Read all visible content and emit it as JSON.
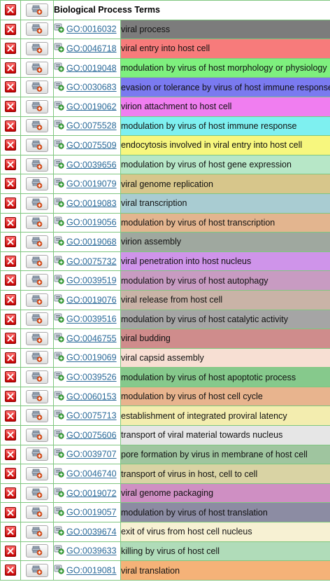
{
  "header": {
    "title": "Biological Process Terms"
  },
  "rows": [
    {
      "id": "GO:0016032",
      "term": "viral process",
      "color": "#7c7c7c"
    },
    {
      "id": "GO:0046718",
      "term": "viral entry into host cell",
      "color": "#f77b7b"
    },
    {
      "id": "GO:0019048",
      "term": "modulation by virus of host morphology or physiology",
      "color": "#7ef07e"
    },
    {
      "id": "GO:0030683",
      "term": "evasion or tolerance by virus of host immune response",
      "color": "#7a7af0"
    },
    {
      "id": "GO:0019062",
      "term": "virion attachment to host cell",
      "color": "#f07ef0"
    },
    {
      "id": "GO:0075528",
      "term": "modulation by virus of host immune response",
      "color": "#7ef0f0"
    },
    {
      "id": "GO:0075509",
      "term": "endocytosis involved in viral entry into host cell",
      "color": "#f7f77e"
    },
    {
      "id": "GO:0039656",
      "term": "modulation by virus of host gene expression",
      "color": "#b7e7c7"
    },
    {
      "id": "GO:0019079",
      "term": "viral genome replication",
      "color": "#d7c68b"
    },
    {
      "id": "GO:0019083",
      "term": "viral transcription",
      "color": "#a9ccd2"
    },
    {
      "id": "GO:0019056",
      "term": "modulation by virus of host transcription",
      "color": "#e3b58f"
    },
    {
      "id": "GO:0019068",
      "term": "virion assembly",
      "color": "#9fa89f"
    },
    {
      "id": "GO:0075732",
      "term": "viral penetration into host nucleus",
      "color": "#cf94ea"
    },
    {
      "id": "GO:0039519",
      "term": "modulation by virus of host autophagy",
      "color": "#c89bc2"
    },
    {
      "id": "GO:0019076",
      "term": "viral release from host cell",
      "color": "#c9b3a7"
    },
    {
      "id": "GO:0039516",
      "term": "modulation by virus of host catalytic activity",
      "color": "#a5a5a5"
    },
    {
      "id": "GO:0046755",
      "term": "viral budding",
      "color": "#cf8c8c"
    },
    {
      "id": "GO:0019069",
      "term": "viral capsid assembly",
      "color": "#f7dfd3"
    },
    {
      "id": "GO:0039526",
      "term": "modulation by virus of host apoptotic process",
      "color": "#86c98c"
    },
    {
      "id": "GO:0060153",
      "term": "modulation by virus of host cell cycle",
      "color": "#e8b48e"
    },
    {
      "id": "GO:0075713",
      "term": "establishment of integrated proviral latency",
      "color": "#f3edaf"
    },
    {
      "id": "GO:0075606",
      "term": "transport of viral material towards nucleus",
      "color": "#e6e6e6"
    },
    {
      "id": "GO:0039707",
      "term": "pore formation by virus in membrane of host cell",
      "color": "#9fc59f"
    },
    {
      "id": "GO:0046740",
      "term": "transport of virus in host, cell to cell",
      "color": "#d9d3a4"
    },
    {
      "id": "GO:0019072",
      "term": "viral genome packaging",
      "color": "#cf8fc3"
    },
    {
      "id": "GO:0019057",
      "term": "modulation by virus of host translation",
      "color": "#8c8ca3"
    },
    {
      "id": "GO:0039674",
      "term": "exit of virus from host cell nucleus",
      "color": "#f7f1d3"
    },
    {
      "id": "GO:0039633",
      "term": "killing by virus of host cell",
      "color": "#b0dcb9"
    },
    {
      "id": "GO:0019081",
      "term": "viral translation",
      "color": "#f5b278"
    }
  ]
}
